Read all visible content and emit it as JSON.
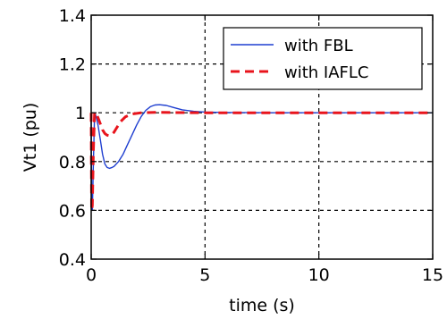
{
  "chart_data": {
    "type": "line",
    "title": "",
    "xlabel": "time (s)",
    "ylabel": "Vt1 (pu)",
    "xlim": [
      0,
      15
    ],
    "ylim": [
      0.4,
      1.4
    ],
    "xticks": [
      0,
      5,
      10,
      15
    ],
    "yticks": [
      0.4,
      0.6,
      0.8,
      1,
      1.2,
      1.4
    ],
    "xtick_labels": [
      "0",
      "5",
      "10",
      "15"
    ],
    "ytick_labels": [
      "0.4",
      "0.6",
      "0.8",
      "1",
      "1.2",
      "1.4"
    ],
    "grid": true,
    "legend_position": "top-right",
    "series": [
      {
        "name": "with FBL",
        "color": "#1f3fd0",
        "style": "solid",
        "x": [
          0,
          0.02,
          0.05,
          0.1,
          0.15,
          0.2,
          0.3,
          0.4,
          0.5,
          0.6,
          0.7,
          0.8,
          0.9,
          1.0,
          1.2,
          1.4,
          1.6,
          1.8,
          2.0,
          2.2,
          2.4,
          2.6,
          2.8,
          3.0,
          3.3,
          3.6,
          4.0,
          4.5,
          5.0,
          6,
          8,
          10,
          12,
          15
        ],
        "y": [
          1.0,
          0.65,
          0.6,
          0.8,
          1.0,
          0.99,
          0.95,
          0.89,
          0.83,
          0.79,
          0.776,
          0.772,
          0.775,
          0.78,
          0.8,
          0.83,
          0.87,
          0.91,
          0.95,
          0.985,
          1.01,
          1.025,
          1.032,
          1.033,
          1.03,
          1.022,
          1.012,
          1.006,
          1.003,
          1.001,
          1.0,
          1.0,
          1.0,
          1.0
        ]
      },
      {
        "name": "with IAFLC",
        "color": "#e8141c",
        "style": "dashed",
        "x": [
          0,
          0.02,
          0.05,
          0.1,
          0.15,
          0.2,
          0.3,
          0.4,
          0.5,
          0.6,
          0.7,
          0.8,
          0.9,
          1.0,
          1.1,
          1.2,
          1.3,
          1.5,
          1.8,
          2.2,
          2.8,
          3.5,
          5,
          8,
          10,
          15
        ],
        "y": [
          1.0,
          0.6,
          0.62,
          0.85,
          1.0,
          1.0,
          0.98,
          0.955,
          0.93,
          0.915,
          0.908,
          0.906,
          0.91,
          0.92,
          0.935,
          0.95,
          0.965,
          0.983,
          0.995,
          1.0,
          1.002,
          1.001,
          1.0,
          1.0,
          1.0,
          1.0
        ]
      }
    ]
  }
}
